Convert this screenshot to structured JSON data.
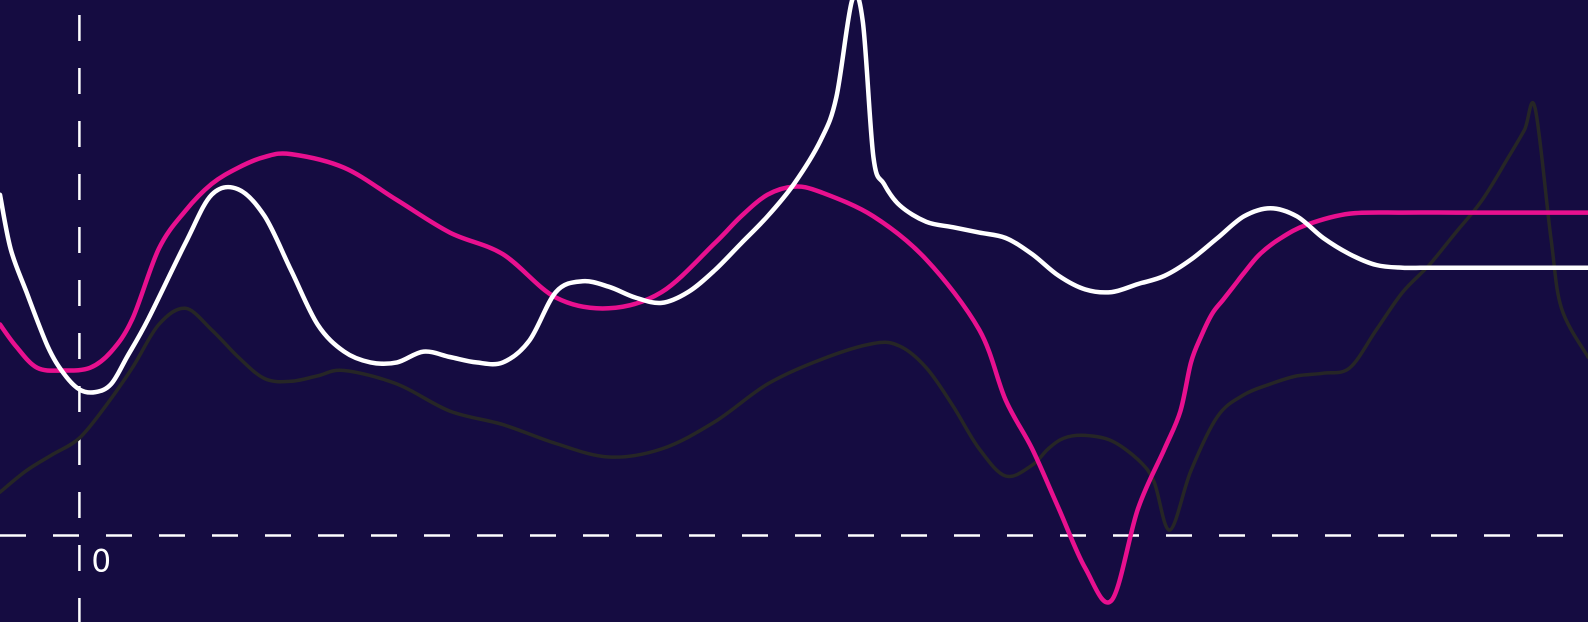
{
  "chart_data": {
    "type": "line",
    "title": "",
    "xlabel": "",
    "ylabel": "",
    "grid": false,
    "legend": "none",
    "xlim": [
      -1.5,
      28.5
    ],
    "ylim": [
      -1.6,
      9.9
    ],
    "origin_label": "0",
    "series": [
      {
        "color": "#e8108f",
        "x": [
          -1.5,
          -1.2,
          -0.8,
          -0.3,
          0.2,
          0.6,
          1.0,
          1.5,
          2.0,
          2.5,
          3.0,
          3.5,
          4.0,
          5.0,
          6.0,
          7.0,
          8.0,
          9.0,
          10.0,
          11.0,
          12.0,
          12.5,
          13.0,
          13.5,
          14.0,
          15.0,
          16.0,
          17.0,
          17.5,
          18.0,
          18.5,
          19.0,
          19.5,
          20.0,
          20.5,
          20.8,
          21.0,
          21.2,
          21.4,
          21.6,
          21.8,
          22.0,
          22.3,
          22.7,
          23.2,
          24.0,
          25.0,
          26.0,
          27.0,
          28.0,
          28.5
        ],
        "y": [
          3.9,
          3.5,
          3.1,
          3.05,
          3.1,
          3.4,
          4.0,
          5.3,
          6.0,
          6.5,
          6.8,
          7.0,
          7.05,
          6.8,
          6.2,
          5.6,
          5.2,
          4.4,
          4.2,
          4.5,
          5.4,
          5.9,
          6.3,
          6.45,
          6.35,
          5.9,
          5.1,
          3.8,
          2.5,
          1.6,
          0.5,
          -0.6,
          -1.2,
          0.5,
          1.6,
          2.3,
          3.2,
          3.7,
          4.1,
          4.35,
          4.6,
          4.85,
          5.2,
          5.5,
          5.75,
          5.95,
          5.97,
          5.97,
          5.97,
          5.97,
          5.97
        ]
      },
      {
        "color": "#ffffff",
        "x": [
          -1.5,
          -1.3,
          -1.0,
          -0.6,
          -0.3,
          0.0,
          0.3,
          0.6,
          0.9,
          1.3,
          2.0,
          2.5,
          3.0,
          3.5,
          4.0,
          4.5,
          5.0,
          5.5,
          6.0,
          6.5,
          7.0,
          7.5,
          8.0,
          8.5,
          9.0,
          9.5,
          10.0,
          10.5,
          11.0,
          11.5,
          12.0,
          12.5,
          13.0,
          13.5,
          14.0,
          14.3,
          14.6,
          14.8,
          15.0,
          15.2,
          15.5,
          16.0,
          16.5,
          17.0,
          17.5,
          18.0,
          18.5,
          19.0,
          19.5,
          20.0,
          20.5,
          21.0,
          21.5,
          22.0,
          22.5,
          23.0,
          23.5,
          24.0,
          24.5,
          25.0,
          25.5,
          26.0,
          26.5,
          27.0,
          27.5,
          28.0,
          28.5
        ],
        "y": [
          6.3,
          5.3,
          4.5,
          3.5,
          3.0,
          2.7,
          2.65,
          2.8,
          3.3,
          4.0,
          5.4,
          6.3,
          6.4,
          5.9,
          4.9,
          3.9,
          3.4,
          3.2,
          3.2,
          3.4,
          3.3,
          3.2,
          3.2,
          3.6,
          4.5,
          4.7,
          4.6,
          4.4,
          4.3,
          4.5,
          4.9,
          5.4,
          5.9,
          6.5,
          7.3,
          8.1,
          9.9,
          9.5,
          7.0,
          6.5,
          6.1,
          5.8,
          5.7,
          5.6,
          5.5,
          5.2,
          4.8,
          4.55,
          4.5,
          4.65,
          4.8,
          5.1,
          5.5,
          5.9,
          6.05,
          5.9,
          5.5,
          5.2,
          5.0,
          4.95,
          4.95,
          4.95,
          4.95,
          4.95,
          4.95,
          4.95,
          4.95
        ]
      },
      {
        "color": "#262626",
        "x": [
          -1.5,
          -1.0,
          -0.5,
          0.0,
          0.5,
          1.0,
          1.5,
          2.0,
          2.5,
          3.0,
          3.5,
          4.0,
          4.5,
          5.0,
          6.0,
          7.0,
          8.0,
          9.0,
          10.0,
          11.0,
          12.0,
          13.0,
          14.0,
          15.0,
          15.5,
          16.0,
          16.5,
          17.0,
          17.5,
          18.0,
          18.3,
          18.6,
          19.0,
          19.5,
          20.0,
          20.3,
          20.6,
          21.0,
          21.5,
          22.0,
          22.5,
          23.0,
          23.5,
          24.0,
          24.5,
          25.0,
          25.5,
          26.0,
          26.5,
          27.0,
          27.3,
          27.5,
          27.8,
          28.0,
          28.5
        ],
        "y": [
          0.8,
          1.2,
          1.5,
          1.8,
          2.4,
          3.1,
          3.9,
          4.2,
          3.8,
          3.3,
          2.9,
          2.85,
          2.95,
          3.05,
          2.8,
          2.3,
          2.05,
          1.7,
          1.45,
          1.6,
          2.1,
          2.8,
          3.25,
          3.55,
          3.5,
          3.1,
          2.4,
          1.6,
          1.1,
          1.3,
          1.6,
          1.8,
          1.85,
          1.75,
          1.4,
          1.0,
          0.1,
          1.2,
          2.2,
          2.6,
          2.8,
          2.95,
          3.0,
          3.1,
          3.8,
          4.5,
          5.0,
          5.6,
          6.2,
          7.0,
          7.5,
          7.9,
          5.5,
          4.2,
          3.3
        ]
      }
    ]
  }
}
